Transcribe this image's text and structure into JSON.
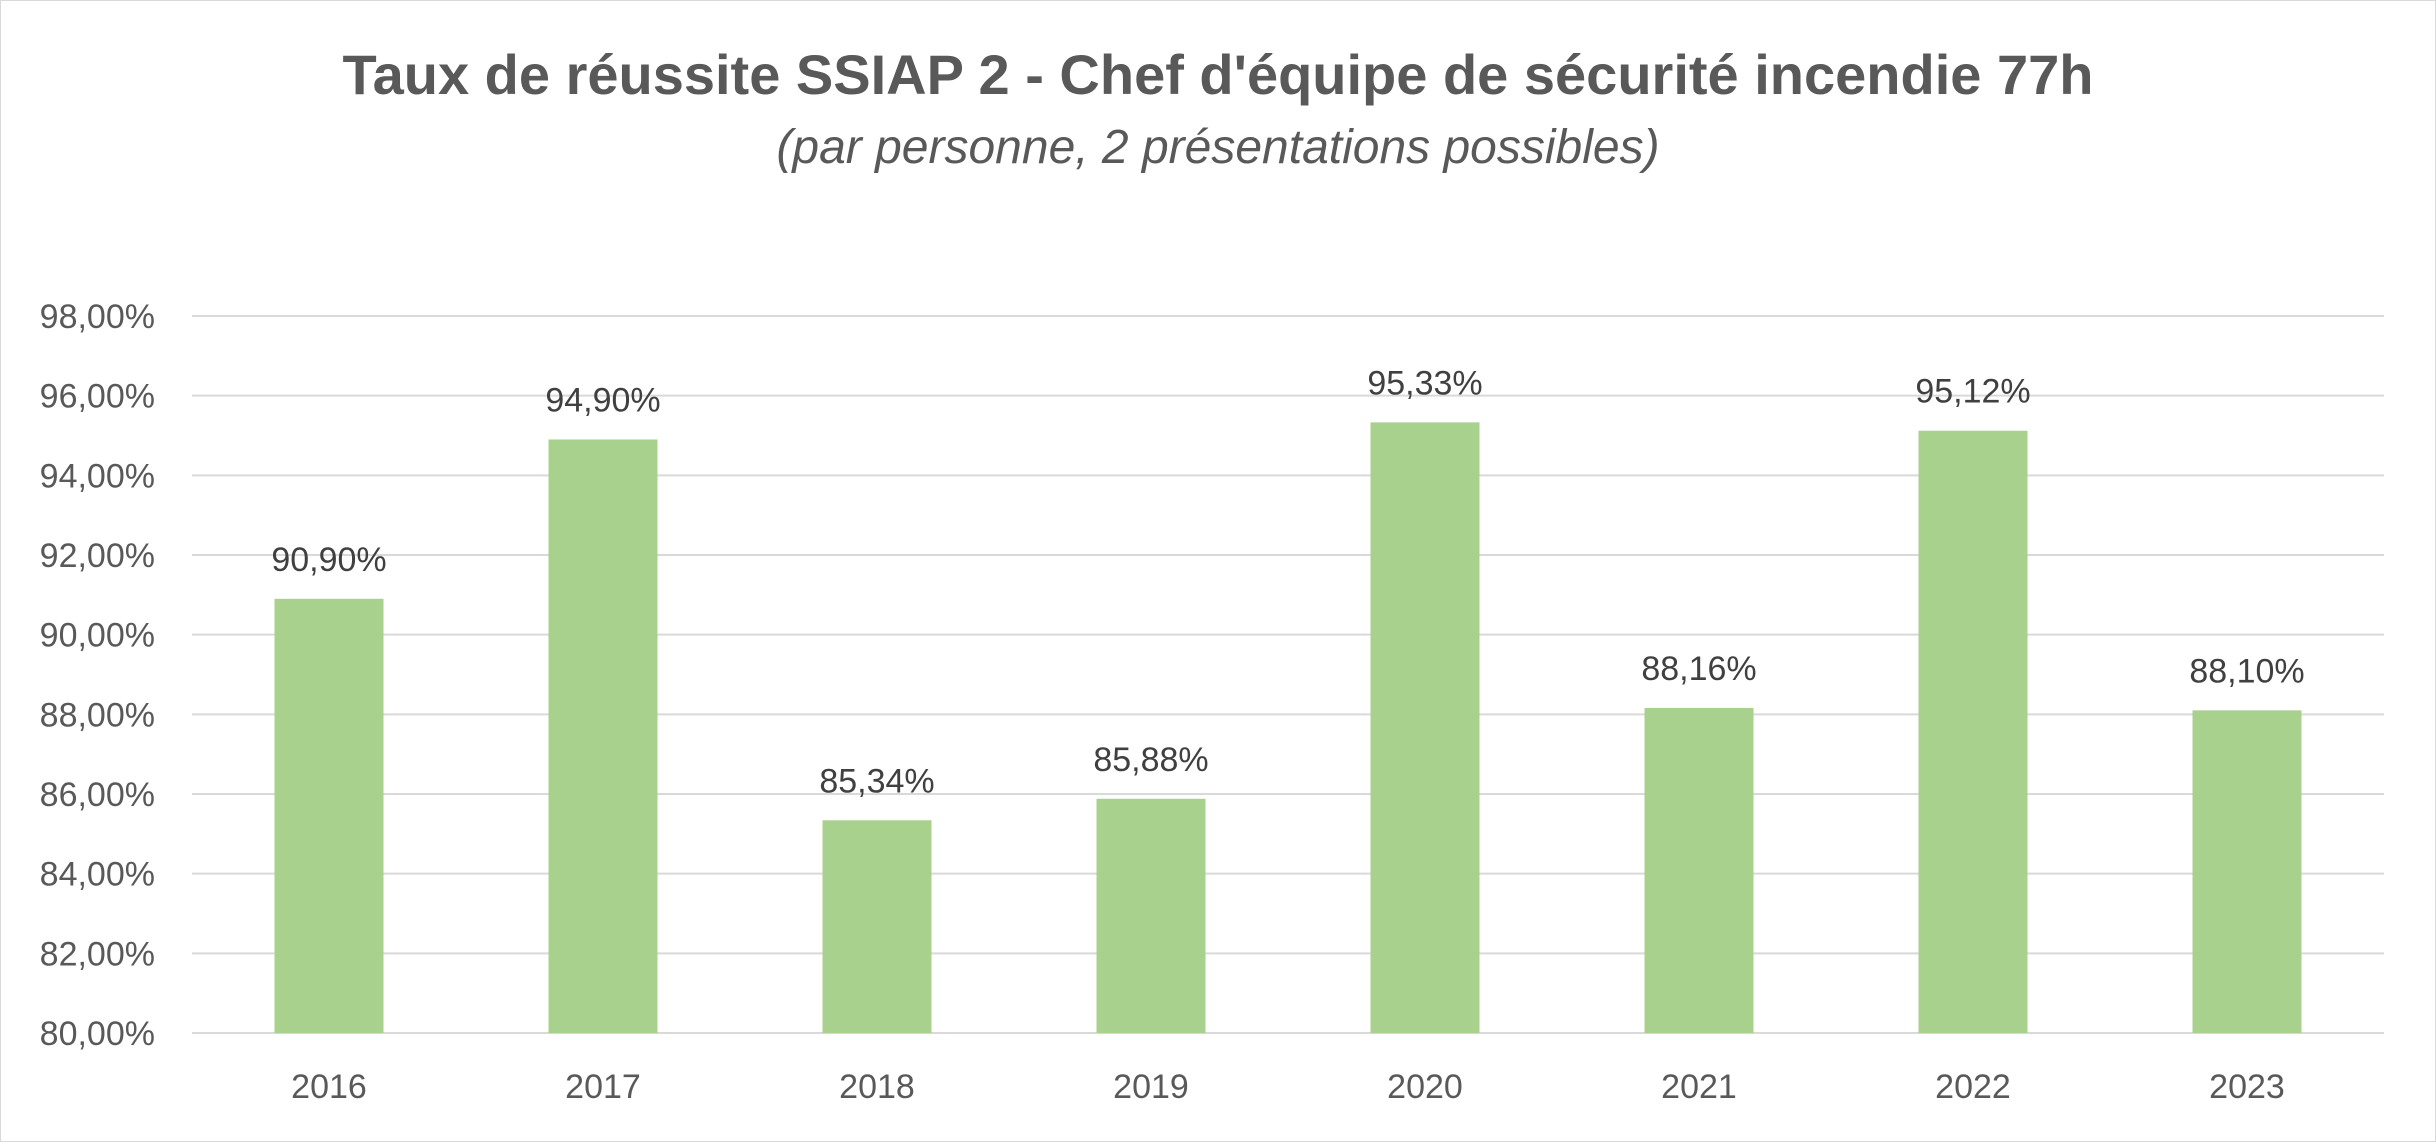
{
  "chart_data": {
    "type": "bar",
    "title": "Taux de réussite SSIAP 2 - Chef d'équipe de sécurité incendie 77h",
    "subtitle": "(par personne, 2 présentations possibles)",
    "xlabel": "",
    "ylabel": "",
    "categories": [
      "2016",
      "2017",
      "2018",
      "2019",
      "2020",
      "2021",
      "2022",
      "2023"
    ],
    "values": [
      90.9,
      94.9,
      85.34,
      85.88,
      95.33,
      88.16,
      95.12,
      88.1
    ],
    "data_labels": [
      "90,90%",
      "94,90%",
      "85,34%",
      "85,88%",
      "95,33%",
      "88,16%",
      "95,12%",
      "88,10%"
    ],
    "ylim": [
      80,
      98
    ],
    "yticks": [
      80,
      82,
      84,
      86,
      88,
      90,
      92,
      94,
      96,
      98
    ],
    "ytick_labels": [
      "80,00%",
      "82,00%",
      "84,00%",
      "86,00%",
      "88,00%",
      "90,00%",
      "92,00%",
      "94,00%",
      "96,00%",
      "98,00%"
    ],
    "grid": true,
    "legend": "none",
    "bar_color": "#a9d18e",
    "grid_color": "#d9d9d9"
  }
}
